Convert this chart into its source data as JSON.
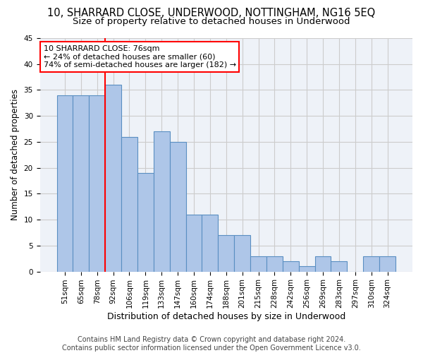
{
  "title1": "10, SHARRARD CLOSE, UNDERWOOD, NOTTINGHAM, NG16 5EQ",
  "title2": "Size of property relative to detached houses in Underwood",
  "xlabel": "Distribution of detached houses by size in Underwood",
  "ylabel": "Number of detached properties",
  "categories": [
    "51sqm",
    "65sqm",
    "78sqm",
    "92sqm",
    "106sqm",
    "119sqm",
    "133sqm",
    "147sqm",
    "160sqm",
    "174sqm",
    "188sqm",
    "201sqm",
    "215sqm",
    "228sqm",
    "242sqm",
    "256sqm",
    "269sqm",
    "283sqm",
    "297sqm",
    "310sqm",
    "324sqm"
  ],
  "values": [
    34,
    34,
    34,
    36,
    26,
    19,
    27,
    25,
    11,
    11,
    7,
    7,
    3,
    3,
    2,
    1,
    3,
    2,
    0,
    3,
    3
  ],
  "bar_color": "#aec6e8",
  "bar_edge_color": "#5a8fc2",
  "red_line_x": 2.5,
  "annotation_text": "10 SHARRARD CLOSE: 76sqm\n← 24% of detached houses are smaller (60)\n74% of semi-detached houses are larger (182) →",
  "annotation_box_color": "white",
  "annotation_box_edge_color": "red",
  "red_line_color": "red",
  "ylim": [
    0,
    45
  ],
  "yticks": [
    0,
    5,
    10,
    15,
    20,
    25,
    30,
    35,
    40,
    45
  ],
  "grid_color": "#cccccc",
  "bg_color": "#eef2f8",
  "footer1": "Contains HM Land Registry data © Crown copyright and database right 2024.",
  "footer2": "Contains public sector information licensed under the Open Government Licence v3.0.",
  "title1_fontsize": 10.5,
  "title2_fontsize": 9.5,
  "xlabel_fontsize": 9,
  "ylabel_fontsize": 8.5,
  "tick_fontsize": 7.5,
  "annot_fontsize": 8,
  "footer_fontsize": 7
}
